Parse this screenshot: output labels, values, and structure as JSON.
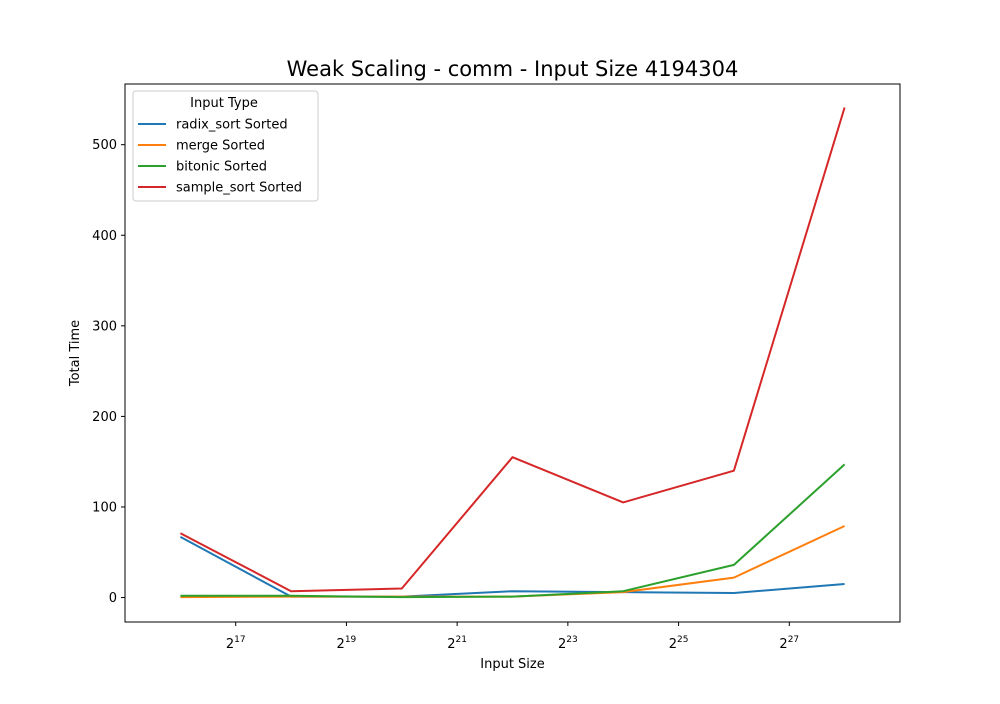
{
  "chart_data": {
    "type": "line",
    "title": "Weak Scaling - comm - Input Size 4194304",
    "xlabel": "Input Size",
    "ylabel": "Total Time",
    "x_scale": "log2",
    "x": [
      65536,
      262144,
      1048576,
      4194304,
      16777216,
      67108864,
      268435456
    ],
    "xlim": [
      32768,
      536870912
    ],
    "xticks": [
      {
        "value": 131072,
        "base": "2",
        "exp": "17"
      },
      {
        "value": 524288,
        "base": "2",
        "exp": "19"
      },
      {
        "value": 2097152,
        "base": "2",
        "exp": "21"
      },
      {
        "value": 8388608,
        "base": "2",
        "exp": "23"
      },
      {
        "value": 33554432,
        "base": "2",
        "exp": "25"
      },
      {
        "value": 134217728,
        "base": "2",
        "exp": "27"
      }
    ],
    "ylim": [
      -27,
      567
    ],
    "yticks": [
      0,
      100,
      200,
      300,
      400,
      500
    ],
    "grid": false,
    "legend": {
      "title": "Input Type",
      "placement": "top-left"
    },
    "series": [
      {
        "name": "radix_sort Sorted",
        "color": "#1f77b4",
        "values": [
          67,
          1,
          1,
          7,
          6,
          5,
          15
        ]
      },
      {
        "name": "merge Sorted",
        "color": "#ff7f0e",
        "values": [
          0.5,
          1,
          1,
          1,
          6,
          22,
          79
        ]
      },
      {
        "name": "bitonic Sorted",
        "color": "#2ca02c",
        "values": [
          2,
          2,
          0.5,
          1,
          7,
          36,
          147
        ]
      },
      {
        "name": "sample_sort Sorted",
        "color": "#d62728",
        "values": [
          71,
          7,
          10,
          155,
          105,
          140,
          541
        ]
      }
    ]
  }
}
